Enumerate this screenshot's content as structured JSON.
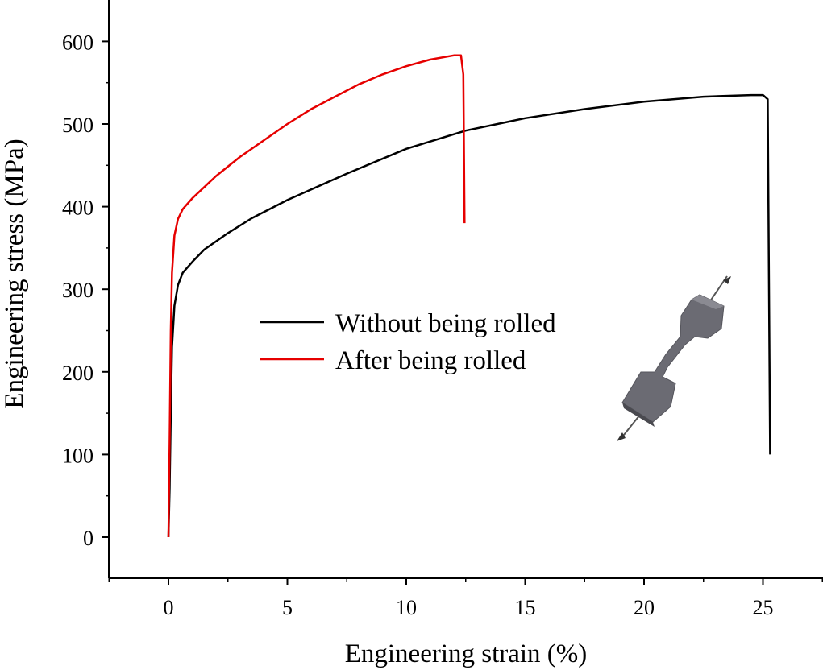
{
  "chart_data": {
    "type": "line",
    "title": "",
    "xlabel": "Engineering strain (%)",
    "ylabel": "Engineering stress (MPa)",
    "xlim": [
      -2.5,
      27.5
    ],
    "ylim": [
      -50,
      650
    ],
    "xticks": [
      0,
      5,
      10,
      15,
      20,
      25
    ],
    "yticks": [
      0,
      100,
      200,
      300,
      400,
      500,
      600
    ],
    "grid": false,
    "legend_position": "center-left",
    "series": [
      {
        "name": "Without being rolled",
        "color": "#000000",
        "points": [
          [
            0,
            0
          ],
          [
            0.05,
            60
          ],
          [
            0.1,
            150
          ],
          [
            0.15,
            230
          ],
          [
            0.25,
            280
          ],
          [
            0.4,
            305
          ],
          [
            0.6,
            320
          ],
          [
            1.0,
            333
          ],
          [
            1.5,
            348
          ],
          [
            2.5,
            368
          ],
          [
            3.5,
            386
          ],
          [
            5,
            408
          ],
          [
            7.5,
            440
          ],
          [
            10,
            470
          ],
          [
            12.5,
            492
          ],
          [
            15,
            507
          ],
          [
            17.5,
            518
          ],
          [
            20,
            527
          ],
          [
            22.5,
            533
          ],
          [
            24.5,
            535
          ],
          [
            25.0,
            535
          ],
          [
            25.2,
            530
          ],
          [
            25.3,
            100
          ]
        ]
      },
      {
        "name": "After being rolled",
        "color": "#e60000",
        "points": [
          [
            0,
            0
          ],
          [
            0.05,
            120
          ],
          [
            0.1,
            250
          ],
          [
            0.15,
            320
          ],
          [
            0.25,
            365
          ],
          [
            0.4,
            385
          ],
          [
            0.6,
            397
          ],
          [
            1.0,
            410
          ],
          [
            2,
            437
          ],
          [
            3,
            460
          ],
          [
            4,
            480
          ],
          [
            5,
            500
          ],
          [
            6,
            518
          ],
          [
            7,
            533
          ],
          [
            8,
            548
          ],
          [
            9,
            560
          ],
          [
            10,
            570
          ],
          [
            11,
            578
          ],
          [
            12,
            583
          ],
          [
            12.3,
            583
          ],
          [
            12.4,
            560
          ],
          [
            12.45,
            380
          ]
        ]
      }
    ],
    "inset": {
      "icon": "tensile-specimen-icon"
    }
  }
}
